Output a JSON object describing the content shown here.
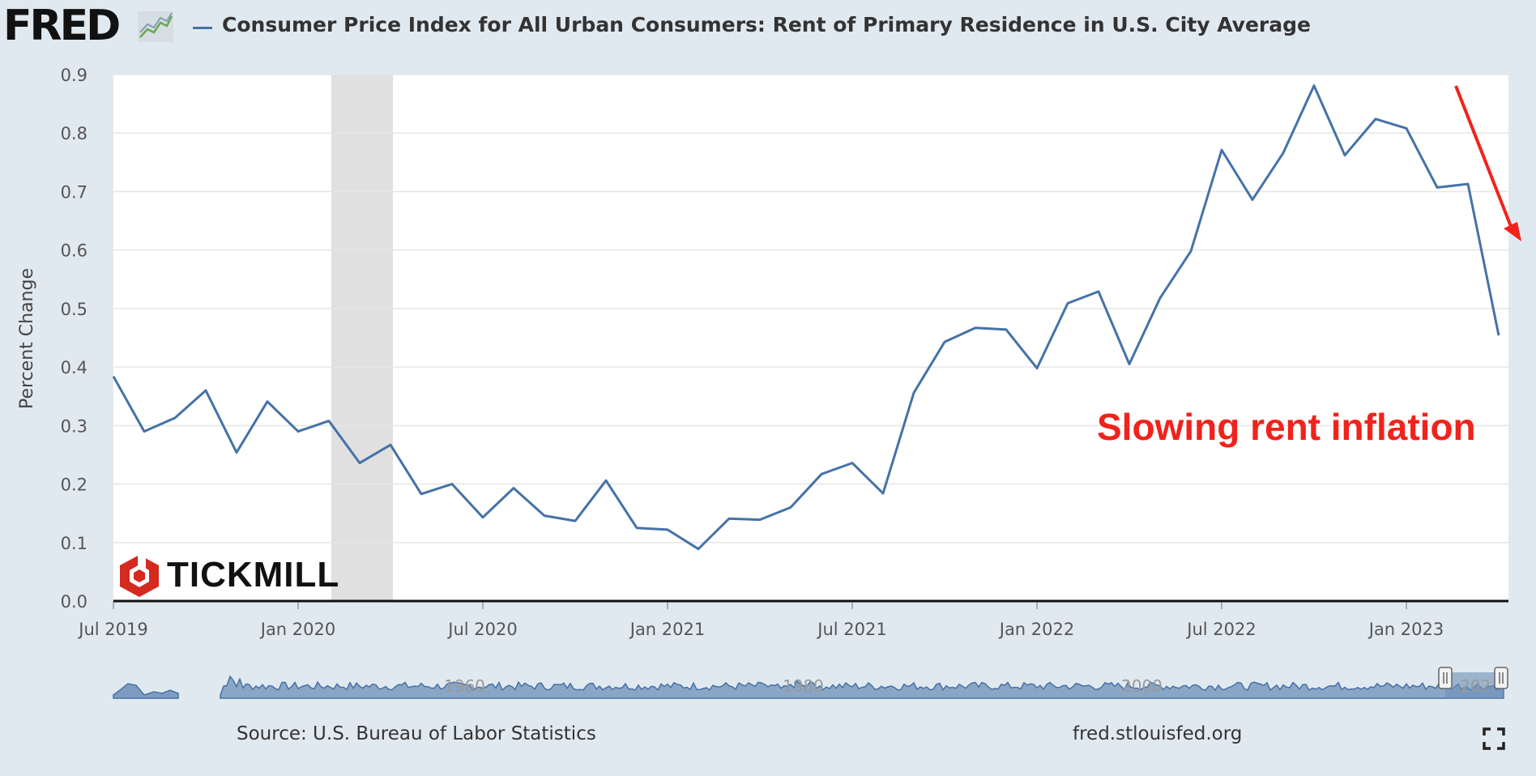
{
  "header": {
    "logo": "FRED",
    "logo_icon": "chart-lines-icon",
    "title": "Consumer Price Index for All Urban Consumers: Rent of Primary Residence in U.S. City Average"
  },
  "chart_data": {
    "type": "line",
    "title": "Consumer Price Index for All Urban Consumers: Rent of Primary Residence in U.S. City Average",
    "ylabel": "Percent Change",
    "xlabel": "",
    "ylim": [
      0.0,
      0.9
    ],
    "yticks": [
      "0.0",
      "0.1",
      "0.2",
      "0.3",
      "0.4",
      "0.5",
      "0.6",
      "0.7",
      "0.8",
      "0.9"
    ],
    "xticks": [
      "Jul 2019",
      "Jan 2020",
      "Jul 2020",
      "Jan 2021",
      "Jul 2021",
      "Jan 2022",
      "Jul 2022",
      "Jan 2023"
    ],
    "grid": true,
    "recession_shading": {
      "start": "2020-02",
      "end": "2020-04"
    },
    "series": [
      {
        "name": "Consumer Price Index for All Urban Consumers: Rent of Primary Residence in U.S. City Average",
        "color": "#4572a7",
        "x": [
          "2019-07",
          "2019-08",
          "2019-09",
          "2019-10",
          "2019-11",
          "2019-12",
          "2020-01",
          "2020-02",
          "2020-03",
          "2020-04",
          "2020-05",
          "2020-06",
          "2020-07",
          "2020-08",
          "2020-09",
          "2020-10",
          "2020-11",
          "2020-12",
          "2021-01",
          "2021-02",
          "2021-03",
          "2021-04",
          "2021-05",
          "2021-06",
          "2021-07",
          "2021-08",
          "2021-09",
          "2021-10",
          "2021-11",
          "2021-12",
          "2022-01",
          "2022-02",
          "2022-03",
          "2022-04",
          "2022-05",
          "2022-06",
          "2022-07",
          "2022-08",
          "2022-09",
          "2022-10",
          "2022-11",
          "2022-12",
          "2023-01",
          "2023-02",
          "2023-03"
        ],
        "values": [
          0.384,
          0.29,
          0.313,
          0.36,
          0.254,
          0.341,
          0.29,
          0.308,
          0.236,
          0.267,
          0.183,
          0.2,
          0.143,
          0.193,
          0.146,
          0.137,
          0.206,
          0.125,
          0.122,
          0.089,
          0.141,
          0.139,
          0.16,
          0.217,
          0.236,
          0.184,
          0.356,
          0.443,
          0.467,
          0.464,
          0.398,
          0.509,
          0.529,
          0.405,
          0.518,
          0.598,
          0.771,
          0.686,
          0.766,
          0.881,
          0.762,
          0.824,
          0.808,
          0.707,
          0.713
        ]
      }
    ],
    "annotations": [
      {
        "text": "Slowing rent inflation",
        "color": "#f0231c"
      }
    ],
    "navigator_labels": [
      "1960",
      "1980",
      "2000",
      "202"
    ]
  },
  "watermark": {
    "brand": "TICKMILL",
    "color": "#d42a20"
  },
  "footer": {
    "source": "Source: U.S. Bureau of Labor Statistics",
    "url": "fred.stlouisfed.org"
  },
  "colors": {
    "background": "#e1e9f0",
    "plot_background": "#ffffff",
    "line": "#4572a7",
    "recession": "#e0e0e0",
    "annotation": "#f0231c"
  }
}
